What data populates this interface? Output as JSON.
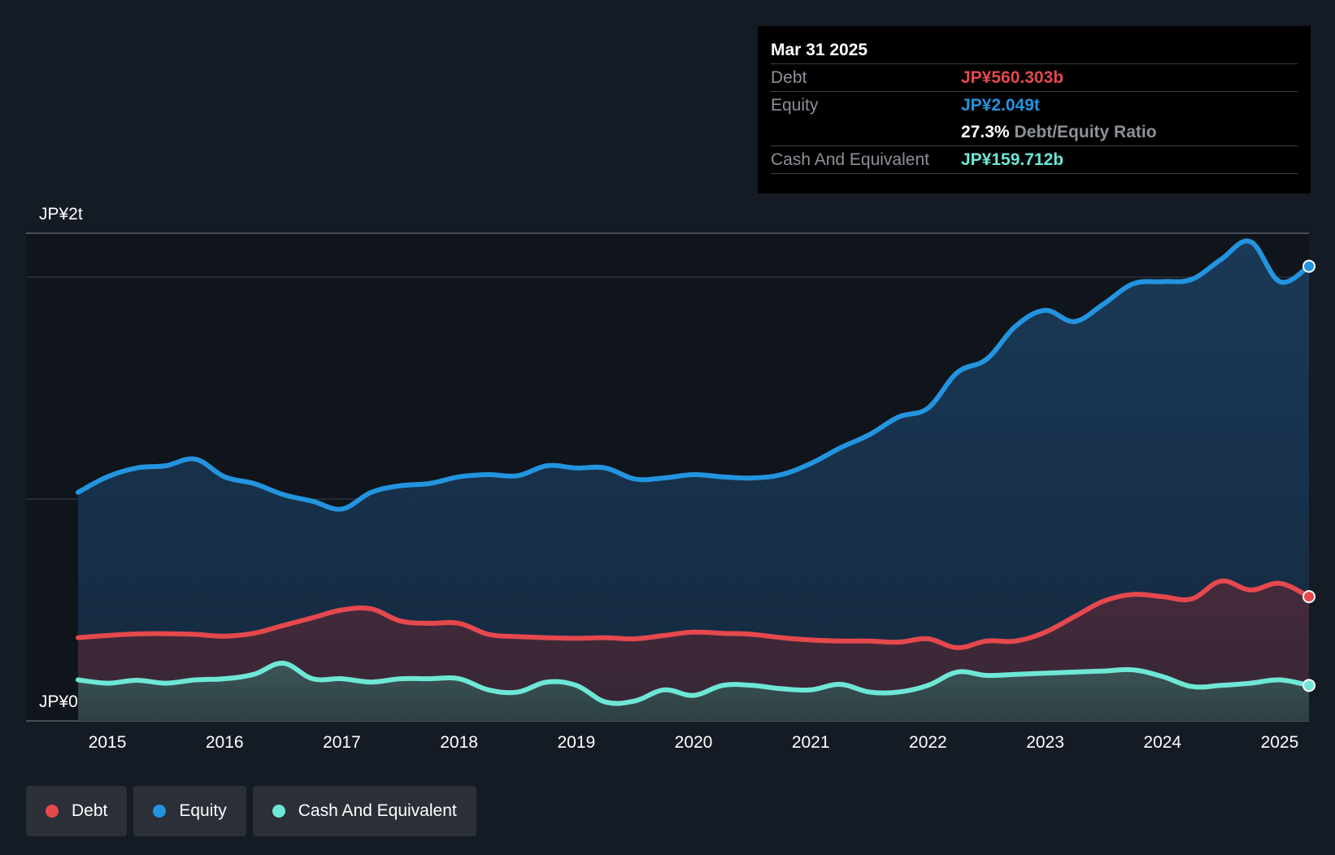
{
  "tooltip": {
    "date": "Mar 31 2025",
    "debt_label": "Debt",
    "debt_value": "JP¥560.303b",
    "equity_label": "Equity",
    "equity_value": "JP¥2.049t",
    "ratio_value": "27.3%",
    "ratio_label": "Debt/Equity Ratio",
    "cash_label": "Cash And Equivalent",
    "cash_value": "JP¥159.712b"
  },
  "legend": {
    "debt": "Debt",
    "equity": "Equity",
    "cash": "Cash And Equivalent"
  },
  "colors": {
    "debt": "#e5484d",
    "equity": "#2394df",
    "cash": "#6ee7d6",
    "background": "#151b24"
  },
  "chart_data": {
    "type": "area",
    "title": "",
    "y_top_label": "JP¥2t",
    "y_bottom_label": "JP¥0",
    "ylim": [
      0,
      2.2
    ],
    "xlim": [
      2014.6,
      2025.25
    ],
    "x_ticks": [
      "2015",
      "2016",
      "2017",
      "2018",
      "2019",
      "2020",
      "2021",
      "2022",
      "2023",
      "2024",
      "2025"
    ],
    "series": [
      {
        "name": "Equity",
        "points": [
          [
            2014.75,
            1.03
          ],
          [
            2015.0,
            1.1
          ],
          [
            2015.25,
            1.14
          ],
          [
            2015.5,
            1.15
          ],
          [
            2015.75,
            1.18
          ],
          [
            2016.0,
            1.1
          ],
          [
            2016.25,
            1.07
          ],
          [
            2016.5,
            1.02
          ],
          [
            2016.75,
            0.99
          ],
          [
            2017.0,
            0.955
          ],
          [
            2017.25,
            1.03
          ],
          [
            2017.5,
            1.06
          ],
          [
            2017.75,
            1.07
          ],
          [
            2018.0,
            1.1
          ],
          [
            2018.25,
            1.11
          ],
          [
            2018.5,
            1.105
          ],
          [
            2018.75,
            1.15
          ],
          [
            2019.0,
            1.14
          ],
          [
            2019.25,
            1.14
          ],
          [
            2019.5,
            1.09
          ],
          [
            2019.75,
            1.095
          ],
          [
            2020.0,
            1.11
          ],
          [
            2020.25,
            1.1
          ],
          [
            2020.5,
            1.095
          ],
          [
            2020.75,
            1.11
          ],
          [
            2021.0,
            1.16
          ],
          [
            2021.25,
            1.23
          ],
          [
            2021.5,
            1.29
          ],
          [
            2021.75,
            1.37
          ],
          [
            2022.0,
            1.41
          ],
          [
            2022.25,
            1.57
          ],
          [
            2022.5,
            1.63
          ],
          [
            2022.75,
            1.78
          ],
          [
            2023.0,
            1.85
          ],
          [
            2023.25,
            1.8
          ],
          [
            2023.5,
            1.88
          ],
          [
            2023.75,
            1.97
          ],
          [
            2024.0,
            1.98
          ],
          [
            2024.25,
            1.99
          ],
          [
            2024.5,
            2.08
          ],
          [
            2024.75,
            2.16
          ],
          [
            2025.0,
            1.98
          ],
          [
            2025.25,
            2.049
          ]
        ]
      },
      {
        "name": "Debt",
        "points": [
          [
            2014.75,
            0.375
          ],
          [
            2015.0,
            0.385
          ],
          [
            2015.25,
            0.392
          ],
          [
            2015.5,
            0.393
          ],
          [
            2015.75,
            0.39
          ],
          [
            2016.0,
            0.382
          ],
          [
            2016.25,
            0.395
          ],
          [
            2016.5,
            0.43
          ],
          [
            2016.75,
            0.465
          ],
          [
            2017.0,
            0.5
          ],
          [
            2017.25,
            0.505
          ],
          [
            2017.5,
            0.45
          ],
          [
            2017.75,
            0.44
          ],
          [
            2018.0,
            0.44
          ],
          [
            2018.25,
            0.39
          ],
          [
            2018.5,
            0.38
          ],
          [
            2018.75,
            0.375
          ],
          [
            2019.0,
            0.372
          ],
          [
            2019.25,
            0.375
          ],
          [
            2019.5,
            0.37
          ],
          [
            2019.75,
            0.385
          ],
          [
            2020.0,
            0.4
          ],
          [
            2020.25,
            0.395
          ],
          [
            2020.5,
            0.39
          ],
          [
            2020.75,
            0.375
          ],
          [
            2021.0,
            0.365
          ],
          [
            2021.25,
            0.36
          ],
          [
            2021.5,
            0.36
          ],
          [
            2021.75,
            0.355
          ],
          [
            2022.0,
            0.37
          ],
          [
            2022.25,
            0.33
          ],
          [
            2022.5,
            0.36
          ],
          [
            2022.75,
            0.36
          ],
          [
            2023.0,
            0.4
          ],
          [
            2023.25,
            0.47
          ],
          [
            2023.5,
            0.54
          ],
          [
            2023.75,
            0.57
          ],
          [
            2024.0,
            0.56
          ],
          [
            2024.25,
            0.55
          ],
          [
            2024.5,
            0.63
          ],
          [
            2024.75,
            0.59
          ],
          [
            2025.0,
            0.62
          ],
          [
            2025.25,
            0.56
          ]
        ]
      },
      {
        "name": "Cash And Equivalent",
        "points": [
          [
            2014.75,
            0.185
          ],
          [
            2015.0,
            0.17
          ],
          [
            2015.25,
            0.183
          ],
          [
            2015.5,
            0.17
          ],
          [
            2015.75,
            0.185
          ],
          [
            2016.0,
            0.19
          ],
          [
            2016.25,
            0.21
          ],
          [
            2016.5,
            0.26
          ],
          [
            2016.75,
            0.19
          ],
          [
            2017.0,
            0.19
          ],
          [
            2017.25,
            0.175
          ],
          [
            2017.5,
            0.19
          ],
          [
            2017.75,
            0.19
          ],
          [
            2018.0,
            0.19
          ],
          [
            2018.25,
            0.14
          ],
          [
            2018.5,
            0.13
          ],
          [
            2018.75,
            0.175
          ],
          [
            2019.0,
            0.16
          ],
          [
            2019.25,
            0.085
          ],
          [
            2019.5,
            0.09
          ],
          [
            2019.75,
            0.14
          ],
          [
            2020.0,
            0.115
          ],
          [
            2020.25,
            0.16
          ],
          [
            2020.5,
            0.16
          ],
          [
            2020.75,
            0.145
          ],
          [
            2021.0,
            0.14
          ],
          [
            2021.25,
            0.165
          ],
          [
            2021.5,
            0.13
          ],
          [
            2021.75,
            0.13
          ],
          [
            2022.0,
            0.16
          ],
          [
            2022.25,
            0.22
          ],
          [
            2022.5,
            0.205
          ],
          [
            2022.75,
            0.21
          ],
          [
            2023.0,
            0.215
          ],
          [
            2023.25,
            0.22
          ],
          [
            2023.5,
            0.225
          ],
          [
            2023.75,
            0.23
          ],
          [
            2024.0,
            0.2
          ],
          [
            2024.25,
            0.155
          ],
          [
            2024.5,
            0.16
          ],
          [
            2024.75,
            0.17
          ],
          [
            2025.0,
            0.185
          ],
          [
            2025.25,
            0.16
          ]
        ]
      }
    ]
  }
}
